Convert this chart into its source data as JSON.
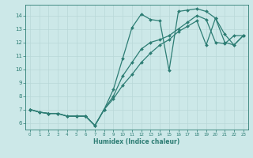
{
  "xlabel": "Humidex (Indice chaleur)",
  "xlim": [
    -0.5,
    23.5
  ],
  "ylim": [
    5.5,
    14.8
  ],
  "yticks": [
    6,
    7,
    8,
    9,
    10,
    11,
    12,
    13,
    14
  ],
  "xticks": [
    0,
    1,
    2,
    3,
    4,
    5,
    6,
    7,
    8,
    9,
    10,
    11,
    12,
    13,
    14,
    15,
    16,
    17,
    18,
    19,
    20,
    21,
    22,
    23
  ],
  "bg_color": "#cce8e8",
  "line_color": "#2d7d74",
  "grid_color": "#b8d8d8",
  "line1_x": [
    0,
    1,
    2,
    3,
    4,
    5,
    6,
    7,
    8,
    9,
    10,
    11,
    12,
    13,
    14,
    15,
    16,
    17,
    18,
    19,
    20,
    21,
    22,
    23
  ],
  "line1_y": [
    7.0,
    6.8,
    6.7,
    6.7,
    6.5,
    6.5,
    6.5,
    5.8,
    7.0,
    8.5,
    10.8,
    13.1,
    14.1,
    13.7,
    13.6,
    9.9,
    14.3,
    14.4,
    14.5,
    14.3,
    13.8,
    12.6,
    11.8,
    12.5
  ],
  "line2_x": [
    0,
    1,
    2,
    3,
    4,
    5,
    6,
    7,
    8,
    9,
    10,
    11,
    12,
    13,
    14,
    15,
    16,
    17,
    18,
    19,
    20,
    21,
    22,
    23
  ],
  "line2_y": [
    7.0,
    6.8,
    6.7,
    6.7,
    6.5,
    6.5,
    6.5,
    5.8,
    7.0,
    8.0,
    9.5,
    10.5,
    11.5,
    12.0,
    12.2,
    12.5,
    13.0,
    13.5,
    14.0,
    13.7,
    12.0,
    11.9,
    12.5,
    12.5
  ],
  "line3_x": [
    0,
    1,
    2,
    3,
    4,
    5,
    6,
    7,
    8,
    9,
    10,
    11,
    12,
    13,
    14,
    15,
    16,
    17,
    18,
    19,
    20,
    21,
    22,
    23
  ],
  "line3_y": [
    7.0,
    6.8,
    6.7,
    6.7,
    6.5,
    6.5,
    6.5,
    5.8,
    7.0,
    7.8,
    8.8,
    9.6,
    10.5,
    11.2,
    11.8,
    12.2,
    12.8,
    13.2,
    13.6,
    11.8,
    13.8,
    12.0,
    11.8,
    12.5
  ]
}
